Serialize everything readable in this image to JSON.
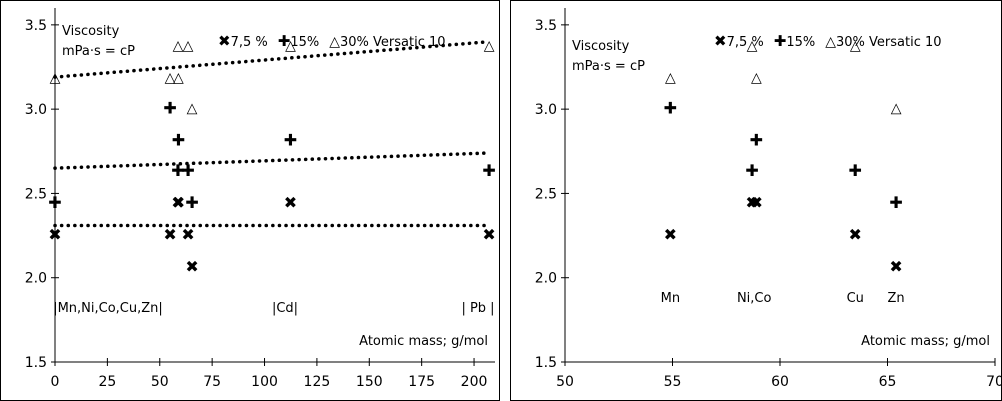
{
  "chart_data": [
    {
      "type": "scatter",
      "title": "",
      "xlabel": "Atomic mass; g/mol",
      "ylabel": "Viscosity mPa·s = cP",
      "ylabel_line1": "Viscosity",
      "ylabel_line2": "mPa·s = cP",
      "xlim": [
        0,
        210
      ],
      "ylim": [
        1.5,
        3.6
      ],
      "xticks": [
        "0",
        "25",
        "50",
        "75",
        "100",
        "125",
        "150",
        "175",
        "200"
      ],
      "yticks": [
        "1.5",
        "2.0",
        "2.5",
        "3.0",
        "3.5"
      ],
      "legend": [
        {
          "symbol": "✖",
          "label": "7,5 %"
        },
        {
          "symbol": "✚",
          "label": "15%"
        },
        {
          "symbol": "△",
          "label": "30% Versatic 10"
        }
      ],
      "annotations": [
        "|Mn,Ni,Co,Cu,Zn|",
        "|Cd|",
        "| Pb |"
      ],
      "series": [
        {
          "name": "7,5 %",
          "symbol": "✖",
          "x": [
            0,
            54.9,
            58.7,
            58.9,
            63.5,
            65.4,
            112.4,
            207.2
          ],
          "y": [
            2.26,
            2.26,
            2.45,
            2.45,
            2.26,
            2.07,
            2.45,
            2.26
          ]
        },
        {
          "name": "15%",
          "symbol": "✚",
          "x": [
            0,
            54.9,
            58.7,
            58.9,
            63.5,
            65.4,
            112.4,
            207.2
          ],
          "y": [
            2.45,
            3.01,
            2.64,
            2.82,
            2.64,
            2.45,
            2.82,
            2.64
          ]
        },
        {
          "name": "30% Versatic 10",
          "symbol": "△",
          "x": [
            0,
            54.9,
            58.7,
            58.9,
            63.5,
            65.4,
            112.4,
            207.2
          ],
          "y": [
            3.19,
            3.19,
            3.38,
            3.19,
            3.38,
            3.01,
            3.38,
            3.38
          ]
        }
      ],
      "trendlines": [
        {
          "series": "7,5 %",
          "x": [
            0,
            207.2
          ],
          "y": [
            2.31,
            2.31
          ]
        },
        {
          "series": "15%",
          "x": [
            0,
            207.2
          ],
          "y": [
            2.65,
            2.74
          ]
        },
        {
          "series": "30% Versatic 10",
          "x": [
            0,
            207.2
          ],
          "y": [
            3.19,
            3.4
          ]
        }
      ]
    },
    {
      "type": "scatter",
      "title": "",
      "xlabel": "Atomic mass; g/mol",
      "ylabel": "Viscosity mPa·s = cP",
      "ylabel_line1": "Viscosity",
      "ylabel_line2": "mPa·s = cP",
      "xlim": [
        50,
        70
      ],
      "ylim": [
        1.5,
        3.6
      ],
      "xticks": [
        "50",
        "55",
        "60",
        "65",
        "70"
      ],
      "yticks": [
        "1.5",
        "2.0",
        "2.5",
        "3.0",
        "3.5"
      ],
      "legend": [
        {
          "symbol": "✖",
          "label": "7,5 %"
        },
        {
          "symbol": "✚",
          "label": "15%"
        },
        {
          "symbol": "△",
          "label": "30% Versatic 10"
        }
      ],
      "element_labels": [
        {
          "text": "Mn",
          "x": 54.9
        },
        {
          "text": "Ni,Co",
          "x": 58.8
        },
        {
          "text": "Cu",
          "x": 63.5
        },
        {
          "text": "Zn",
          "x": 65.4
        }
      ],
      "series": [
        {
          "name": "7,5 %",
          "symbol": "✖",
          "x": [
            54.9,
            58.7,
            58.9,
            63.5,
            65.4
          ],
          "y": [
            2.26,
            2.45,
            2.45,
            2.26,
            2.07
          ]
        },
        {
          "name": "15%",
          "symbol": "✚",
          "x": [
            54.9,
            58.7,
            58.9,
            63.5,
            65.4
          ],
          "y": [
            3.01,
            2.64,
            2.82,
            2.64,
            2.45
          ]
        },
        {
          "name": "30% Versatic 10",
          "symbol": "△",
          "x": [
            54.9,
            58.7,
            58.9,
            63.5,
            65.4
          ],
          "y": [
            3.19,
            3.38,
            3.19,
            3.38,
            3.01
          ]
        }
      ]
    }
  ]
}
